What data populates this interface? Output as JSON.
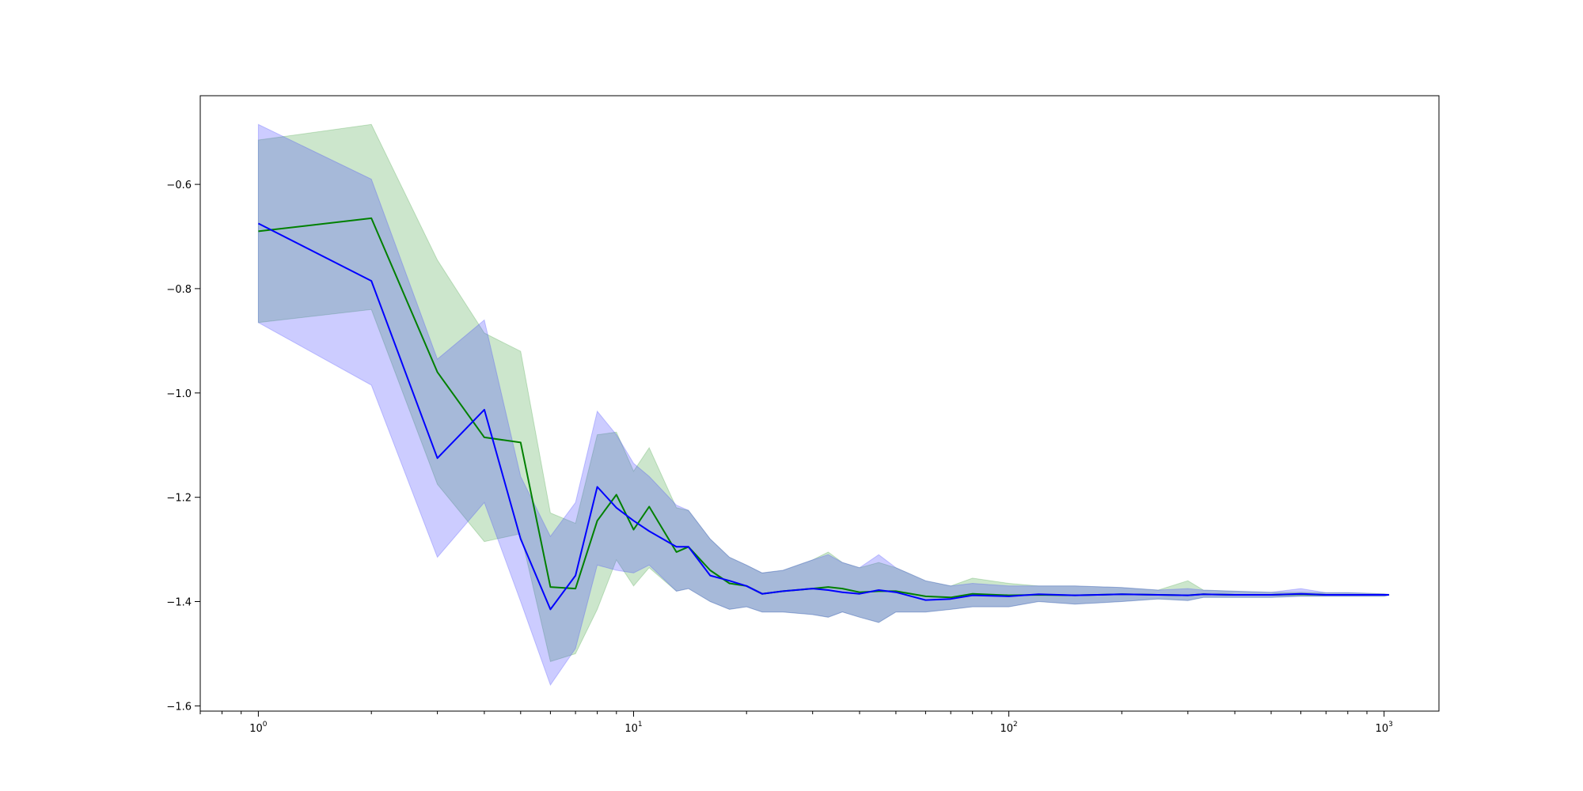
{
  "chart_data": {
    "type": "line",
    "title": "",
    "xlabel": "",
    "ylabel": "",
    "x_scale": "log",
    "xlim": [
      0.7,
      1400
    ],
    "ylim": [
      -1.61,
      -0.43
    ],
    "grid": false,
    "x_ticks": [
      {
        "value": 1,
        "base": "10",
        "exp": "0"
      },
      {
        "value": 10,
        "base": "10",
        "exp": "1"
      },
      {
        "value": 100,
        "base": "10",
        "exp": "2"
      },
      {
        "value": 1000,
        "base": "10",
        "exp": "3"
      }
    ],
    "y_ticks": [
      {
        "value": -0.6,
        "label": "−0.6"
      },
      {
        "value": -0.8,
        "label": "−0.8"
      },
      {
        "value": -1.0,
        "label": "−1.0"
      },
      {
        "value": -1.2,
        "label": "−1.2"
      },
      {
        "value": -1.4,
        "label": "−1.4"
      },
      {
        "value": -1.6,
        "label": "−1.6"
      }
    ],
    "series": [
      {
        "color": "#008000",
        "fill_color": "#008000",
        "fill_opacity": 0.2,
        "x": [
          1,
          2,
          3,
          4,
          5,
          6,
          7,
          8,
          9,
          10,
          11,
          13,
          14,
          16,
          18,
          20,
          22,
          25,
          30,
          33,
          36,
          40,
          45,
          50,
          60,
          70,
          80,
          100,
          120,
          150,
          200,
          250,
          300,
          330,
          400,
          500,
          600,
          700,
          800,
          900,
          1000,
          1030
        ],
        "y": [
          -0.69,
          -0.665,
          -0.96,
          -1.085,
          -1.095,
          -1.372,
          -1.375,
          -1.245,
          -1.195,
          -1.262,
          -1.218,
          -1.305,
          -1.295,
          -1.34,
          -1.365,
          -1.37,
          -1.385,
          -1.38,
          -1.375,
          -1.372,
          -1.375,
          -1.382,
          -1.38,
          -1.38,
          -1.39,
          -1.392,
          -1.385,
          -1.388,
          -1.387,
          -1.388,
          -1.386,
          -1.387,
          -1.388,
          -1.386,
          -1.387,
          -1.387,
          -1.386,
          -1.387,
          -1.387,
          -1.387,
          -1.387,
          -1.387
        ],
        "lower": [
          -0.865,
          -0.84,
          -1.175,
          -1.285,
          -1.27,
          -1.515,
          -1.5,
          -1.415,
          -1.32,
          -1.37,
          -1.335,
          -1.38,
          -1.375,
          -1.4,
          -1.415,
          -1.41,
          -1.42,
          -1.42,
          -1.425,
          -1.43,
          -1.42,
          -1.43,
          -1.44,
          -1.42,
          -1.42,
          -1.415,
          -1.41,
          -1.41,
          -1.4,
          -1.405,
          -1.4,
          -1.395,
          -1.398,
          -1.392,
          -1.392,
          -1.392,
          -1.39,
          -1.39,
          -1.39,
          -1.39,
          -1.39,
          -1.388
        ],
        "upper": [
          -0.515,
          -0.485,
          -0.745,
          -0.885,
          -0.92,
          -1.23,
          -1.25,
          -1.08,
          -1.075,
          -1.15,
          -1.105,
          -1.22,
          -1.225,
          -1.28,
          -1.315,
          -1.33,
          -1.345,
          -1.34,
          -1.32,
          -1.305,
          -1.325,
          -1.335,
          -1.325,
          -1.335,
          -1.36,
          -1.37,
          -1.355,
          -1.365,
          -1.37,
          -1.37,
          -1.373,
          -1.378,
          -1.36,
          -1.378,
          -1.38,
          -1.382,
          -1.382,
          -1.383,
          -1.383,
          -1.384,
          -1.385,
          -1.386
        ]
      },
      {
        "color": "#0000ff",
        "fill_color": "#3333ff",
        "fill_opacity": 0.25,
        "x": [
          1,
          2,
          3,
          4,
          5,
          6,
          7,
          8,
          9,
          10,
          11,
          13,
          14,
          16,
          18,
          20,
          22,
          25,
          30,
          33,
          36,
          40,
          45,
          50,
          60,
          70,
          80,
          100,
          120,
          150,
          200,
          250,
          300,
          330,
          400,
          500,
          600,
          700,
          800,
          900,
          1000,
          1030
        ],
        "y": [
          -0.675,
          -0.785,
          -1.125,
          -1.032,
          -1.28,
          -1.415,
          -1.35,
          -1.18,
          -1.22,
          -1.245,
          -1.265,
          -1.295,
          -1.295,
          -1.35,
          -1.36,
          -1.37,
          -1.385,
          -1.38,
          -1.375,
          -1.378,
          -1.382,
          -1.385,
          -1.378,
          -1.382,
          -1.397,
          -1.395,
          -1.388,
          -1.39,
          -1.386,
          -1.388,
          -1.386,
          -1.387,
          -1.388,
          -1.386,
          -1.387,
          -1.387,
          -1.385,
          -1.387,
          -1.387,
          -1.387,
          -1.387,
          -1.387
        ],
        "lower": [
          -0.865,
          -0.985,
          -1.315,
          -1.21,
          -1.4,
          -1.56,
          -1.49,
          -1.33,
          -1.34,
          -1.345,
          -1.33,
          -1.38,
          -1.375,
          -1.4,
          -1.415,
          -1.41,
          -1.42,
          -1.42,
          -1.425,
          -1.43,
          -1.42,
          -1.43,
          -1.44,
          -1.42,
          -1.42,
          -1.415,
          -1.41,
          -1.41,
          -1.4,
          -1.405,
          -1.4,
          -1.395,
          -1.398,
          -1.392,
          -1.392,
          -1.392,
          -1.39,
          -1.39,
          -1.39,
          -1.39,
          -1.39,
          -1.388
        ],
        "upper": [
          -0.485,
          -0.59,
          -0.935,
          -0.86,
          -1.16,
          -1.275,
          -1.21,
          -1.035,
          -1.08,
          -1.135,
          -1.16,
          -1.215,
          -1.225,
          -1.28,
          -1.315,
          -1.33,
          -1.345,
          -1.34,
          -1.32,
          -1.31,
          -1.325,
          -1.335,
          -1.31,
          -1.335,
          -1.36,
          -1.37,
          -1.365,
          -1.37,
          -1.37,
          -1.37,
          -1.373,
          -1.378,
          -1.375,
          -1.378,
          -1.38,
          -1.382,
          -1.375,
          -1.383,
          -1.383,
          -1.384,
          -1.385,
          -1.386
        ]
      }
    ]
  }
}
